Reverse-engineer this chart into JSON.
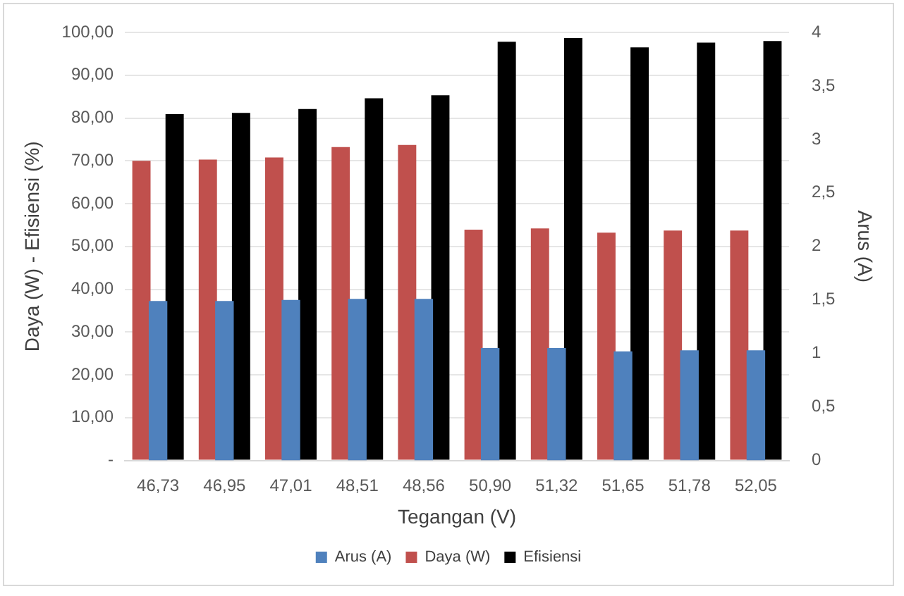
{
  "chart_data": {
    "type": "bar",
    "xlabel": "Tegangan (V)",
    "ylabel": "Daya (W) - Efisiensi (%)",
    "y2label": "Arus (A)",
    "categories": [
      "46,73",
      "46,95",
      "47,01",
      "48,51",
      "48,56",
      "50,90",
      "51,32",
      "51,65",
      "51,78",
      "52,05"
    ],
    "series": [
      {
        "name": "Daya (W)",
        "color": "#c0504d",
        "values": [
          70.0,
          70.3,
          70.8,
          73.2,
          73.7,
          53.9,
          54.2,
          53.2,
          53.7,
          53.7
        ]
      },
      {
        "name": "Efisiensi",
        "color": "#000000",
        "values": [
          80.9,
          81.2,
          82.1,
          84.6,
          85.3,
          97.8,
          98.7,
          96.5,
          97.6,
          98.0
        ]
      },
      {
        "name": "Arus (A)",
        "color": "#4f81bd",
        "axis": "y2",
        "values": [
          1.49,
          1.49,
          1.5,
          1.51,
          1.51,
          1.05,
          1.05,
          1.02,
          1.03,
          1.03
        ]
      }
    ],
    "ylim": [
      0,
      100
    ],
    "yticks": [
      {
        "value": 0,
        "label": "-"
      },
      {
        "value": 10,
        "label": "10,00"
      },
      {
        "value": 20,
        "label": "20,00"
      },
      {
        "value": 30,
        "label": "30,00"
      },
      {
        "value": 40,
        "label": "40,00"
      },
      {
        "value": 50,
        "label": "50,00"
      },
      {
        "value": 60,
        "label": "60,00"
      },
      {
        "value": 70,
        "label": "70,00"
      },
      {
        "value": 80,
        "label": "80,00"
      },
      {
        "value": 90,
        "label": "90,00"
      },
      {
        "value": 100,
        "label": "100,00"
      }
    ],
    "y2lim": [
      0,
      4
    ],
    "y2ticks": [
      0,
      {
        "value": 0.5,
        "label": "0,5"
      },
      1,
      {
        "value": 1.5,
        "label": "1,5"
      },
      2,
      {
        "value": 2.5,
        "label": "2,5"
      },
      3,
      {
        "value": 3.5,
        "label": "3,5"
      },
      4
    ],
    "grid": "y",
    "legend": "bottom"
  }
}
